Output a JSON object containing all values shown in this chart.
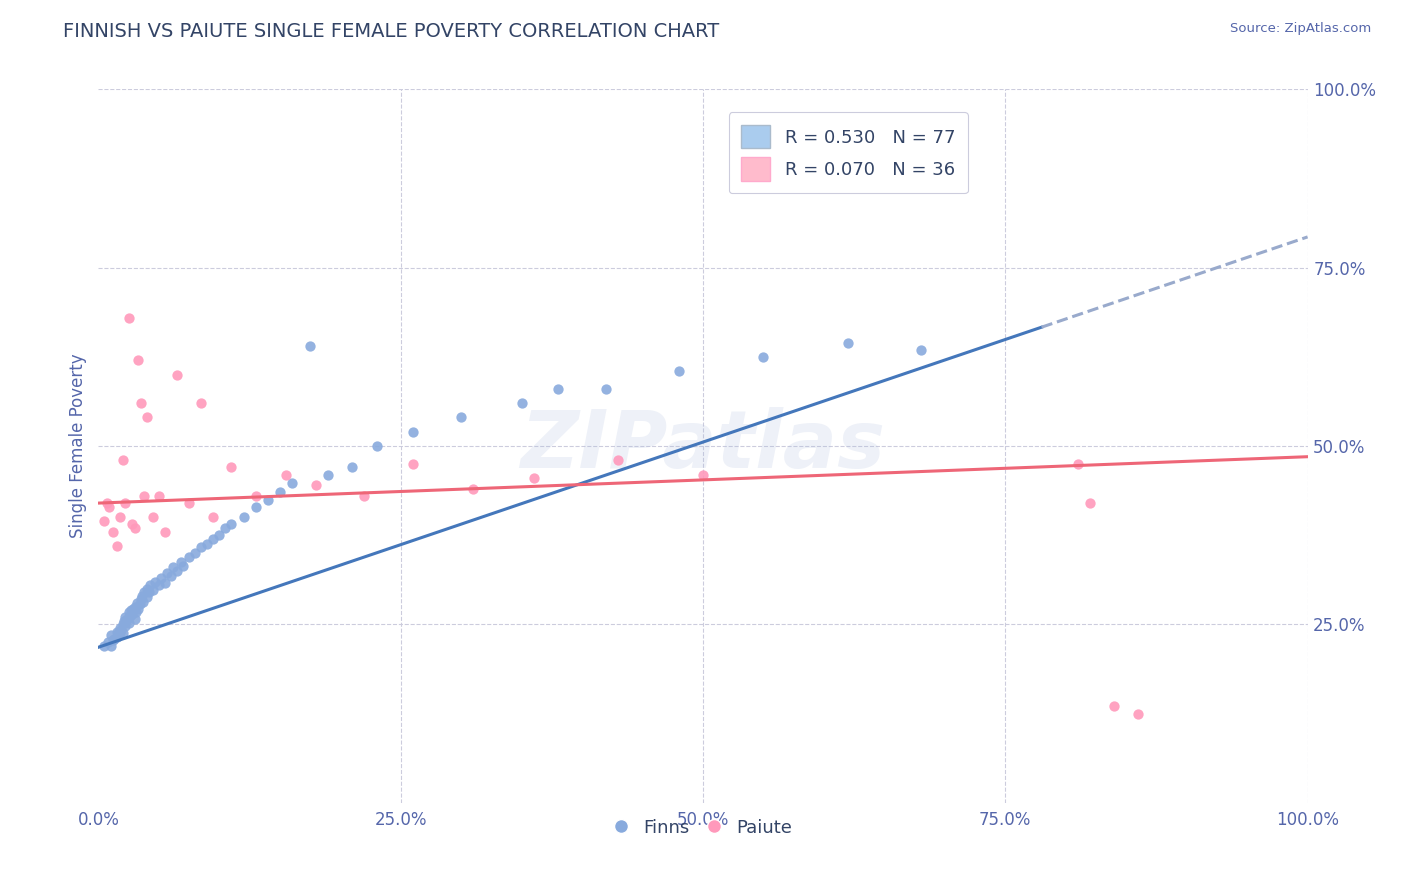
{
  "title": "FINNISH VS PAIUTE SINGLE FEMALE POVERTY CORRELATION CHART",
  "source_text": "Source: ZipAtlas.com",
  "ylabel": "Single Female Poverty",
  "watermark": "ZIPatlas",
  "xlim": [
    0.0,
    1.0
  ],
  "ylim": [
    0.0,
    1.0
  ],
  "xtick_labels": [
    "0.0%",
    "25.0%",
    "50.0%",
    "75.0%",
    "100.0%"
  ],
  "xtick_vals": [
    0.0,
    0.25,
    0.5,
    0.75,
    1.0
  ],
  "ytick_labels_right": [
    "25.0%",
    "50.0%",
    "75.0%",
    "100.0%"
  ],
  "ytick_vals_right": [
    0.25,
    0.5,
    0.75,
    1.0
  ],
  "finns_R": 0.53,
  "finns_N": 77,
  "paiute_R": 0.07,
  "paiute_N": 36,
  "blue_dot_color": "#88AADD",
  "pink_dot_color": "#FF99BB",
  "blue_line_color": "#4477BB",
  "pink_line_color": "#EE6677",
  "dashed_line_color": "#99AACC",
  "background_color": "#FFFFFF",
  "grid_color": "#CCCCDD",
  "title_color": "#334466",
  "axis_label_color": "#5566AA",
  "legend_box_blue": "#AACCEE",
  "legend_box_pink": "#FFBBCC",
  "finns_intercept": 0.218,
  "finns_slope": 0.575,
  "paiute_intercept": 0.42,
  "paiute_slope": 0.065,
  "finns_x_points": [
    0.005,
    0.008,
    0.01,
    0.01,
    0.012,
    0.013,
    0.015,
    0.015,
    0.016,
    0.017,
    0.018,
    0.018,
    0.019,
    0.02,
    0.02,
    0.021,
    0.022,
    0.022,
    0.023,
    0.024,
    0.025,
    0.025,
    0.026,
    0.027,
    0.028,
    0.029,
    0.03,
    0.03,
    0.031,
    0.032,
    0.033,
    0.034,
    0.035,
    0.036,
    0.037,
    0.038,
    0.04,
    0.04,
    0.042,
    0.043,
    0.045,
    0.047,
    0.05,
    0.052,
    0.055,
    0.057,
    0.06,
    0.062,
    0.065,
    0.068,
    0.07,
    0.075,
    0.08,
    0.085,
    0.09,
    0.095,
    0.1,
    0.105,
    0.11,
    0.12,
    0.13,
    0.14,
    0.15,
    0.16,
    0.175,
    0.19,
    0.21,
    0.23,
    0.26,
    0.3,
    0.35,
    0.38,
    0.42,
    0.48,
    0.55,
    0.62,
    0.68
  ],
  "finns_y_points": [
    0.22,
    0.225,
    0.22,
    0.235,
    0.228,
    0.23,
    0.232,
    0.24,
    0.238,
    0.235,
    0.24,
    0.245,
    0.242,
    0.238,
    0.25,
    0.255,
    0.248,
    0.26,
    0.255,
    0.258,
    0.252,
    0.268,
    0.262,
    0.27,
    0.265,
    0.272,
    0.258,
    0.275,
    0.268,
    0.28,
    0.272,
    0.278,
    0.285,
    0.29,
    0.282,
    0.295,
    0.288,
    0.3,
    0.295,
    0.305,
    0.298,
    0.31,
    0.305,
    0.315,
    0.308,
    0.322,
    0.318,
    0.33,
    0.325,
    0.338,
    0.332,
    0.345,
    0.35,
    0.358,
    0.362,
    0.37,
    0.375,
    0.385,
    0.39,
    0.4,
    0.415,
    0.425,
    0.435,
    0.448,
    0.64,
    0.46,
    0.47,
    0.5,
    0.52,
    0.54,
    0.56,
    0.58,
    0.58,
    0.605,
    0.625,
    0.645,
    0.635
  ],
  "paiute_x_points": [
    0.005,
    0.007,
    0.009,
    0.012,
    0.015,
    0.018,
    0.02,
    0.022,
    0.025,
    0.028,
    0.03,
    0.033,
    0.035,
    0.038,
    0.04,
    0.045,
    0.05,
    0.055,
    0.065,
    0.075,
    0.085,
    0.095,
    0.11,
    0.13,
    0.155,
    0.18,
    0.22,
    0.26,
    0.31,
    0.36,
    0.43,
    0.5,
    0.81,
    0.82,
    0.84,
    0.86
  ],
  "paiute_y_points": [
    0.395,
    0.42,
    0.415,
    0.38,
    0.36,
    0.4,
    0.48,
    0.42,
    0.68,
    0.39,
    0.385,
    0.62,
    0.56,
    0.43,
    0.54,
    0.4,
    0.43,
    0.38,
    0.6,
    0.42,
    0.56,
    0.4,
    0.47,
    0.43,
    0.46,
    0.445,
    0.43,
    0.475,
    0.44,
    0.455,
    0.48,
    0.46,
    0.475,
    0.42,
    0.135,
    0.125
  ]
}
